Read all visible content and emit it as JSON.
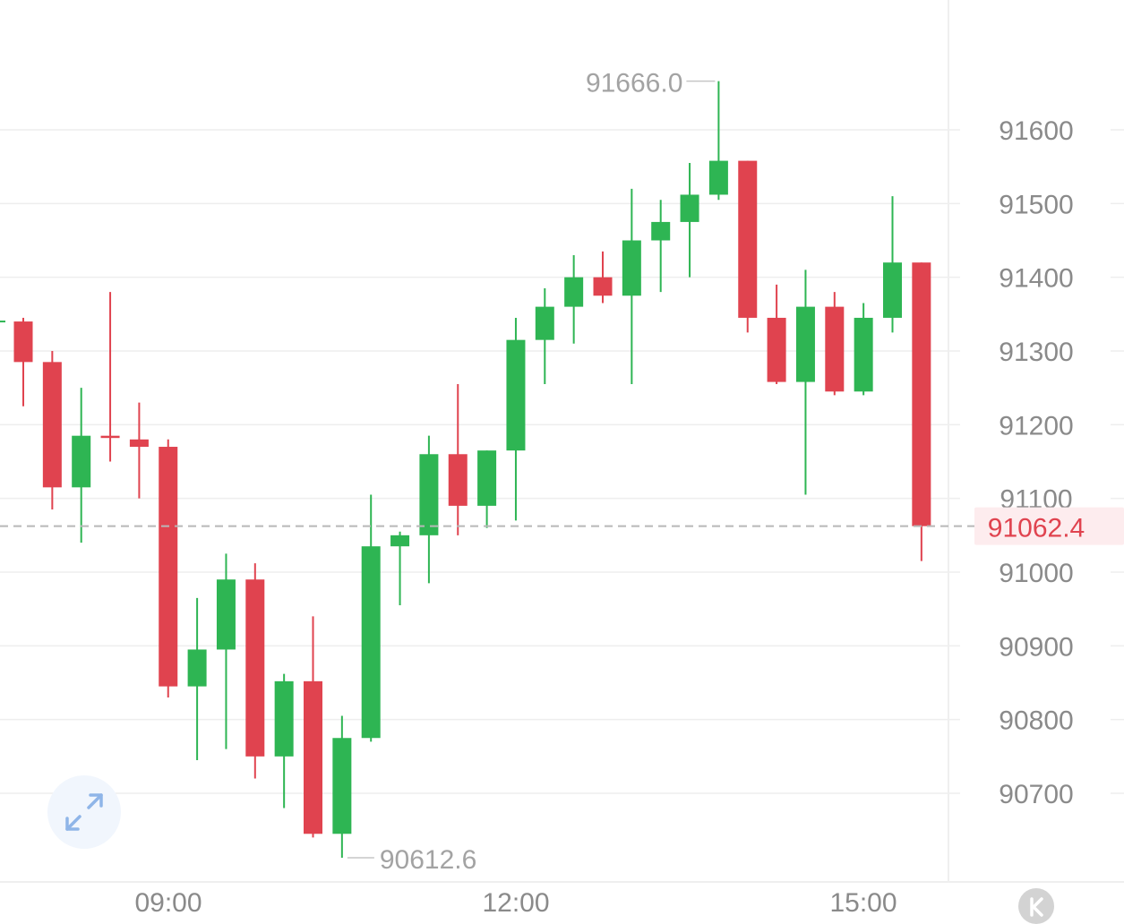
{
  "chart_data": {
    "type": "candlestick",
    "x_ticks": [
      "09:00",
      "12:00",
      "15:00"
    ],
    "y_ticks": [
      91600,
      91500,
      91400,
      91300,
      91200,
      91100,
      91000,
      90900,
      90800,
      90700
    ],
    "ylim": [
      90580,
      91750
    ],
    "last_price": "91062.4",
    "high_label": "91666.0",
    "low_label": "90612.6",
    "grid": true,
    "candles": [
      {
        "o": 91340,
        "h": 91345,
        "c": 91285,
        "l": 91225
      },
      {
        "o": 91285,
        "h": 91300,
        "c": 91115,
        "l": 91085
      },
      {
        "o": 91115,
        "h": 91250,
        "c": 91185,
        "l": 91040
      },
      {
        "o": 91185,
        "h": 91380,
        "c": 91182,
        "l": 91150
      },
      {
        "o": 91180,
        "h": 91230,
        "c": 91170,
        "l": 91100
      },
      {
        "o": 91170,
        "h": 91180,
        "c": 90845,
        "l": 90830
      },
      {
        "o": 90845,
        "h": 90965,
        "c": 90895,
        "l": 90745
      },
      {
        "o": 90895,
        "h": 91025,
        "c": 90990,
        "l": 90760
      },
      {
        "o": 90990,
        "h": 91012,
        "c": 90750,
        "l": 90720
      },
      {
        "o": 90750,
        "h": 90862,
        "c": 90852,
        "l": 90680
      },
      {
        "o": 90852,
        "h": 90940,
        "c": 90645,
        "l": 90640
      },
      {
        "o": 90645,
        "h": 90805,
        "c": 90775,
        "l": 90612.6
      },
      {
        "o": 90775,
        "h": 91105,
        "c": 91035,
        "l": 90770
      },
      {
        "o": 91035,
        "h": 91055,
        "c": 91050,
        "l": 90955
      },
      {
        "o": 91050,
        "h": 91185,
        "c": 91160,
        "l": 90985
      },
      {
        "o": 91160,
        "h": 91255,
        "c": 91090,
        "l": 91050
      },
      {
        "o": 91090,
        "h": 91165,
        "c": 91165,
        "l": 91060
      },
      {
        "o": 91165,
        "h": 91345,
        "c": 91315,
        "l": 91070
      },
      {
        "o": 91315,
        "h": 91385,
        "c": 91360,
        "l": 91255
      },
      {
        "o": 91360,
        "h": 91430,
        "c": 91400,
        "l": 91310
      },
      {
        "o": 91400,
        "h": 91435,
        "c": 91375,
        "l": 91365
      },
      {
        "o": 91375,
        "h": 91520,
        "c": 91450,
        "l": 91255
      },
      {
        "o": 91450,
        "h": 91505,
        "c": 91475,
        "l": 91380
      },
      {
        "o": 91475,
        "h": 91555,
        "c": 91512,
        "l": 91400
      },
      {
        "o": 91512,
        "h": 91666,
        "c": 91558,
        "l": 91505
      },
      {
        "o": 91558,
        "h": 91558,
        "c": 91345,
        "l": 91325
      },
      {
        "o": 91345,
        "h": 91390,
        "c": 91258,
        "l": 91255
      },
      {
        "o": 91258,
        "h": 91410,
        "c": 91360,
        "l": 91105
      },
      {
        "o": 91360,
        "h": 91380,
        "c": 91245,
        "l": 91240
      },
      {
        "o": 91245,
        "h": 91365,
        "c": 91345,
        "l": 91240
      },
      {
        "o": 91345,
        "h": 91510,
        "c": 91420,
        "l": 91325
      },
      {
        "o": 91420,
        "h": 91420,
        "c": 91062.4,
        "l": 91015
      }
    ]
  },
  "colors": {
    "up": "#2eb553",
    "down": "#e0434f",
    "grid": "#eeeeee",
    "last_price_line": "#b8b8b8",
    "last_price_bg": "#fdecee",
    "expand_icon": "#8fb5e8"
  },
  "controls": {
    "expand_icon": "expand-arrows-icon",
    "kline_icon": "k-letter-icon"
  }
}
